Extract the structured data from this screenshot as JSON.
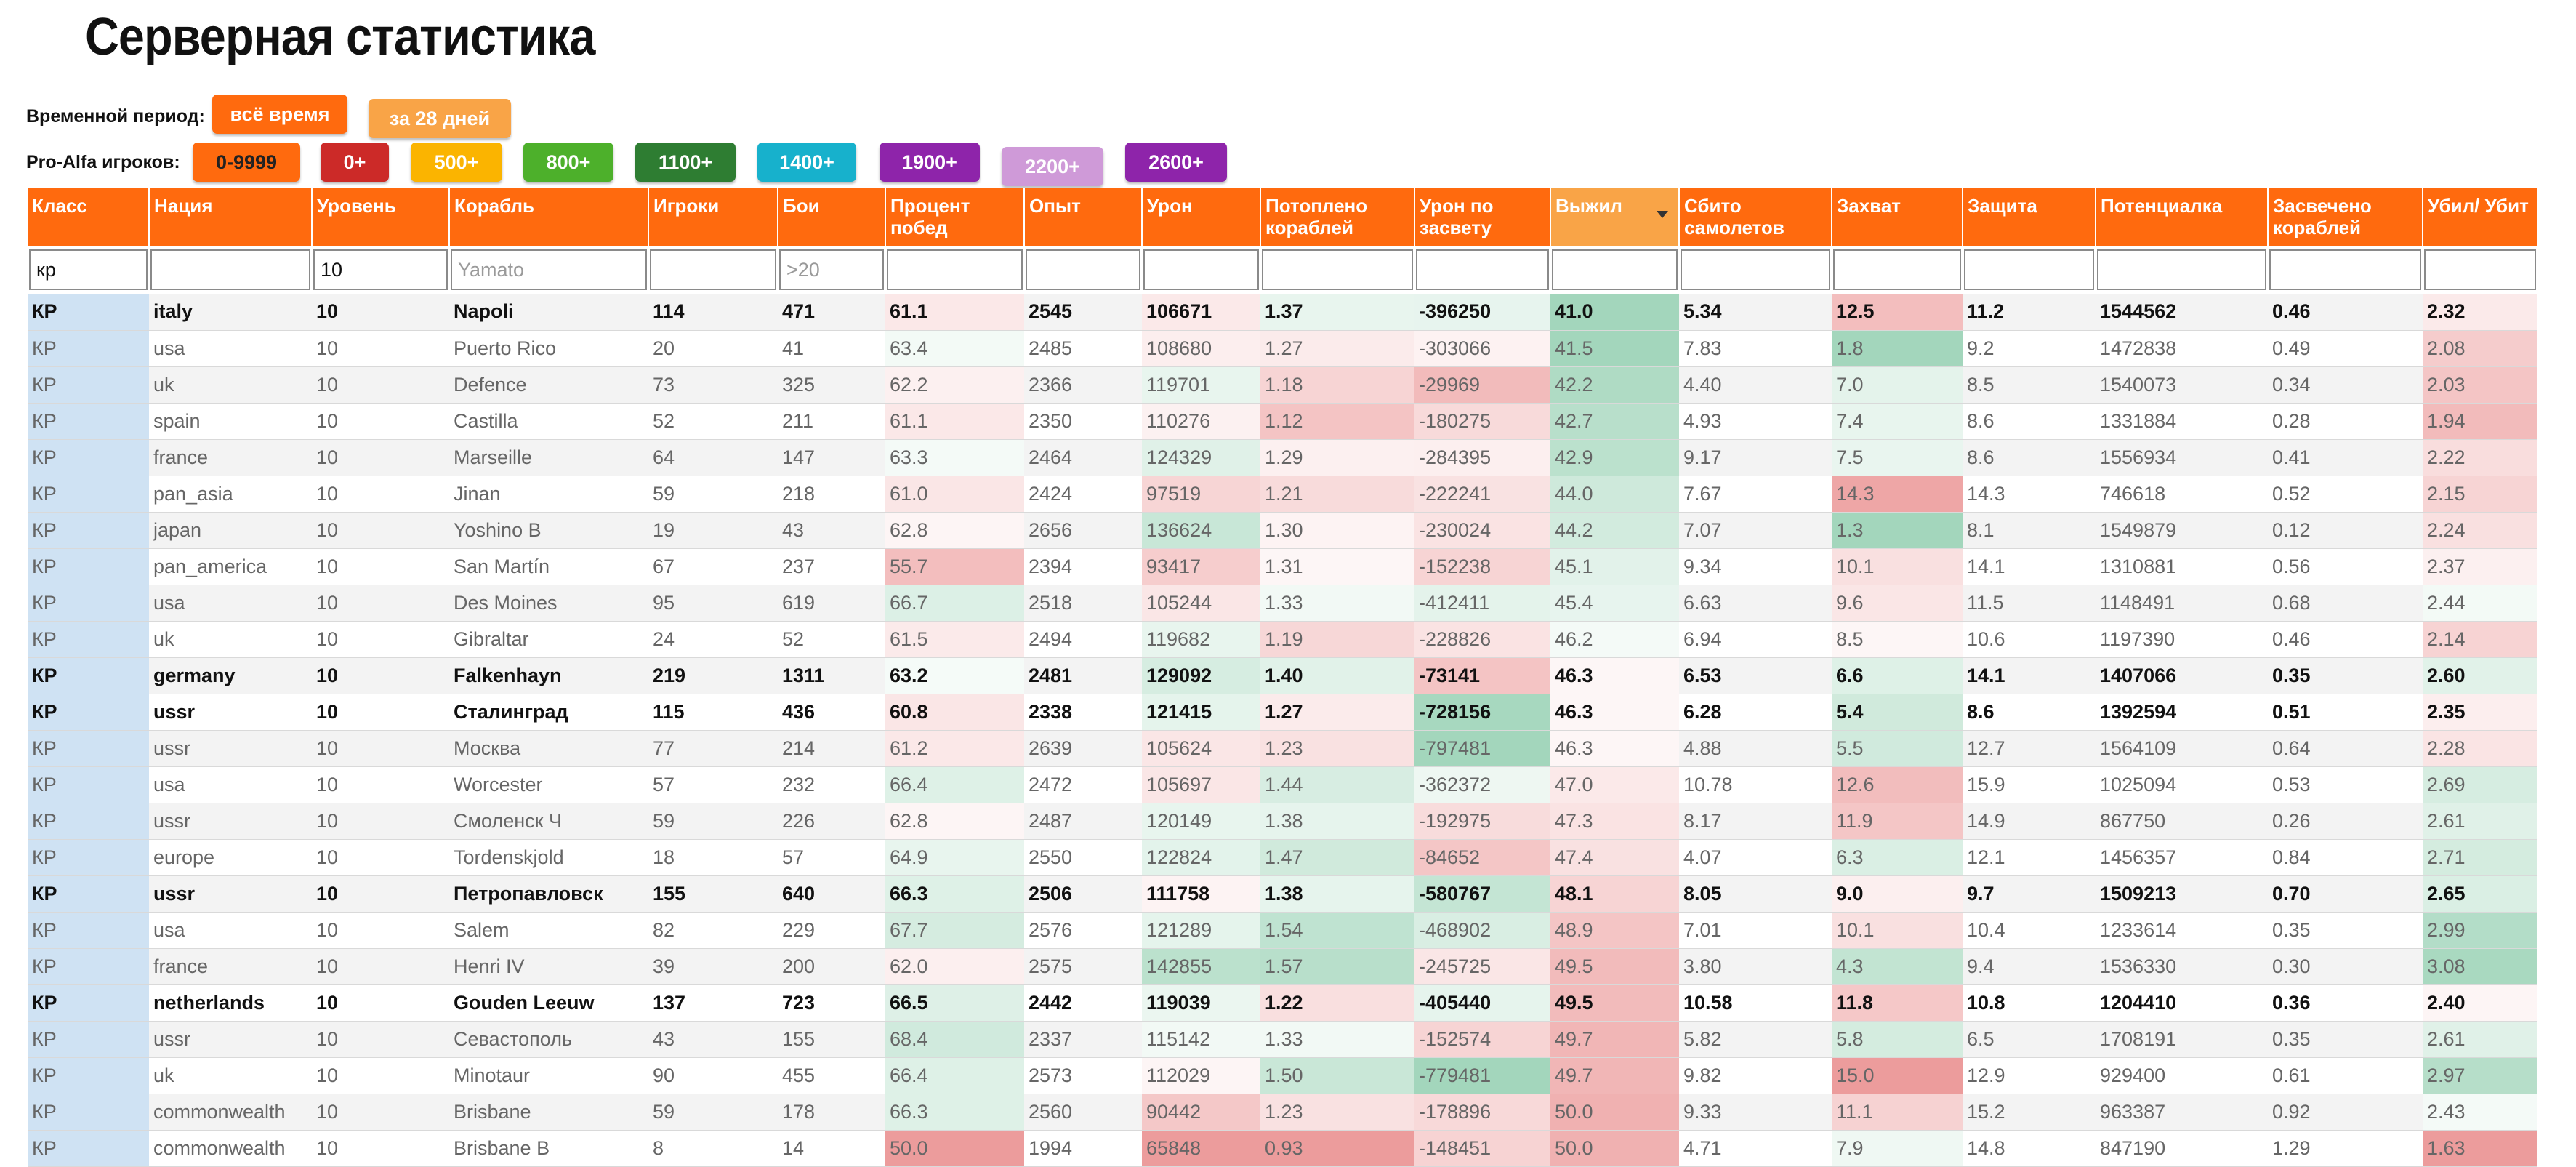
{
  "title": "Серверная статистика",
  "period": {
    "label": "Временной период:",
    "options": [
      "всё время",
      "за 28 дней"
    ]
  },
  "proalfa": {
    "label": "Pro-Alfa игроков:",
    "options": [
      "0-9999",
      "0+",
      "500+",
      "800+",
      "1100+",
      "1400+",
      "1900+",
      "2200+",
      "2600+"
    ]
  },
  "colors": {
    "header": "#ff6a0e",
    "header_sorted": "#f9a447",
    "class_column": "#cfe2f3",
    "positive_tint": "#93cfb0",
    "negative_tint": "#e98b8b"
  },
  "table": {
    "columns": [
      "Класс",
      "Нация",
      "Уровень",
      "Корабль",
      "Игроки",
      "Бои",
      "Процент побед",
      "Опыт",
      "Урон",
      "Потоплено кораблей",
      "Урон по засвету",
      "Выжил",
      "Сбито самолетов",
      "Захват",
      "Защита",
      "Потенциалка",
      "Засвечено кораблей",
      "Убил/ Убит"
    ],
    "sorted_column": "Выжил",
    "filters": {
      "class": "кр",
      "level": "10",
      "ship_placeholder": "Yamato",
      "battles_placeholder": ">20"
    },
    "rows": [
      [
        "КР",
        "italy",
        "10",
        "Napoli",
        "114",
        "471",
        "61.1",
        "2545",
        "106671",
        "1.37",
        "-396250",
        "41.0",
        "5.34",
        "12.5",
        "11.2",
        "1544562",
        "0.46",
        "2.32"
      ],
      [
        "КР",
        "usa",
        "10",
        "Puerto Rico",
        "20",
        "41",
        "63.4",
        "2485",
        "108680",
        "1.27",
        "-303066",
        "41.5",
        "7.83",
        "1.8",
        "9.2",
        "1472838",
        "0.49",
        "2.08"
      ],
      [
        "КР",
        "uk",
        "10",
        "Defence",
        "73",
        "325",
        "62.2",
        "2366",
        "119701",
        "1.18",
        "-29969",
        "42.2",
        "4.40",
        "7.0",
        "8.5",
        "1540073",
        "0.34",
        "2.03"
      ],
      [
        "КР",
        "spain",
        "10",
        "Castilla",
        "52",
        "211",
        "61.1",
        "2350",
        "110276",
        "1.12",
        "-180275",
        "42.7",
        "4.93",
        "7.4",
        "8.6",
        "1331884",
        "0.28",
        "1.94"
      ],
      [
        "КР",
        "france",
        "10",
        "Marseille",
        "64",
        "147",
        "63.3",
        "2464",
        "124329",
        "1.29",
        "-284395",
        "42.9",
        "9.17",
        "7.5",
        "8.6",
        "1556934",
        "0.41",
        "2.22"
      ],
      [
        "КР",
        "pan_asia",
        "10",
        "Jinan",
        "59",
        "218",
        "61.0",
        "2424",
        "97519",
        "1.21",
        "-222241",
        "44.0",
        "7.67",
        "14.3",
        "14.3",
        "746618",
        "0.52",
        "2.15"
      ],
      [
        "КР",
        "japan",
        "10",
        "Yoshino B",
        "19",
        "43",
        "62.8",
        "2656",
        "136624",
        "1.30",
        "-230024",
        "44.2",
        "7.07",
        "1.3",
        "8.1",
        "1549879",
        "0.12",
        "2.24"
      ],
      [
        "КР",
        "pan_america",
        "10",
        "San Martín",
        "67",
        "237",
        "55.7",
        "2394",
        "93417",
        "1.31",
        "-152238",
        "45.1",
        "9.34",
        "10.1",
        "14.1",
        "1310881",
        "0.56",
        "2.37"
      ],
      [
        "КР",
        "usa",
        "10",
        "Des Moines",
        "95",
        "619",
        "66.7",
        "2518",
        "105244",
        "1.33",
        "-412411",
        "45.4",
        "6.63",
        "9.6",
        "11.5",
        "1148491",
        "0.68",
        "2.44"
      ],
      [
        "КР",
        "uk",
        "10",
        "Gibraltar",
        "24",
        "52",
        "61.5",
        "2494",
        "119682",
        "1.19",
        "-228826",
        "46.2",
        "6.94",
        "8.5",
        "10.6",
        "1197390",
        "0.46",
        "2.14"
      ],
      [
        "КР",
        "germany",
        "10",
        "Falkenhayn",
        "219",
        "1311",
        "63.2",
        "2481",
        "129092",
        "1.40",
        "-73141",
        "46.3",
        "6.53",
        "6.6",
        "14.1",
        "1407066",
        "0.35",
        "2.60"
      ],
      [
        "КР",
        "ussr",
        "10",
        "Сталинград",
        "115",
        "436",
        "60.8",
        "2338",
        "121415",
        "1.27",
        "-728156",
        "46.3",
        "6.28",
        "5.4",
        "8.6",
        "1392594",
        "0.51",
        "2.35"
      ],
      [
        "КР",
        "ussr",
        "10",
        "Москва",
        "77",
        "214",
        "61.2",
        "2639",
        "105624",
        "1.23",
        "-797481",
        "46.3",
        "4.88",
        "5.5",
        "12.7",
        "1564109",
        "0.64",
        "2.28"
      ],
      [
        "КР",
        "usa",
        "10",
        "Worcester",
        "57",
        "232",
        "66.4",
        "2472",
        "105697",
        "1.44",
        "-362372",
        "47.0",
        "10.78",
        "12.6",
        "15.9",
        "1025094",
        "0.53",
        "2.69"
      ],
      [
        "КР",
        "ussr",
        "10",
        "Смоленск Ч",
        "59",
        "226",
        "62.8",
        "2487",
        "120149",
        "1.38",
        "-192975",
        "47.3",
        "8.17",
        "11.9",
        "14.9",
        "867750",
        "0.26",
        "2.61"
      ],
      [
        "КР",
        "europe",
        "10",
        "Tordenskjold",
        "18",
        "57",
        "64.9",
        "2550",
        "122824",
        "1.47",
        "-84652",
        "47.4",
        "4.07",
        "6.3",
        "12.1",
        "1456357",
        "0.84",
        "2.71"
      ],
      [
        "КР",
        "ussr",
        "10",
        "Петропавловск",
        "155",
        "640",
        "66.3",
        "2506",
        "111758",
        "1.38",
        "-580767",
        "48.1",
        "8.05",
        "9.0",
        "9.7",
        "1509213",
        "0.70",
        "2.65"
      ],
      [
        "КР",
        "usa",
        "10",
        "Salem",
        "82",
        "229",
        "67.7",
        "2576",
        "121289",
        "1.54",
        "-468902",
        "48.9",
        "7.01",
        "10.1",
        "10.4",
        "1233614",
        "0.35",
        "2.99"
      ],
      [
        "КР",
        "france",
        "10",
        "Henri IV",
        "39",
        "200",
        "62.0",
        "2575",
        "142855",
        "1.57",
        "-245725",
        "49.5",
        "3.80",
        "4.3",
        "9.4",
        "1536330",
        "0.30",
        "3.08"
      ],
      [
        "КР",
        "netherlands",
        "10",
        "Gouden Leeuw",
        "137",
        "723",
        "66.5",
        "2442",
        "119039",
        "1.22",
        "-405440",
        "49.5",
        "10.58",
        "11.8",
        "10.8",
        "1204410",
        "0.36",
        "2.40"
      ],
      [
        "КР",
        "ussr",
        "10",
        "Севастополь",
        "43",
        "155",
        "68.4",
        "2337",
        "115142",
        "1.33",
        "-152574",
        "49.7",
        "5.82",
        "5.8",
        "6.5",
        "1708191",
        "0.35",
        "2.61"
      ],
      [
        "КР",
        "uk",
        "10",
        "Minotaur",
        "90",
        "455",
        "66.4",
        "2573",
        "112029",
        "1.50",
        "-779481",
        "49.7",
        "9.82",
        "15.0",
        "12.9",
        "929400",
        "0.61",
        "2.97"
      ],
      [
        "КР",
        "commonwealth",
        "10",
        "Brisbane",
        "59",
        "178",
        "66.3",
        "2560",
        "90442",
        "1.23",
        "-178896",
        "50.0",
        "9.33",
        "11.1",
        "15.2",
        "963387",
        "0.92",
        "2.43"
      ],
      [
        "КР",
        "commonwealth",
        "10",
        "Brisbane B",
        "8",
        "14",
        "50.0",
        "1994",
        "65848",
        "0.93",
        "-148451",
        "50.0",
        "4.71",
        "7.9",
        "14.8",
        "847190",
        "1.29",
        "1.63"
      ]
    ],
    "bold_rows": [
      0,
      10,
      11,
      16,
      19
    ]
  }
}
